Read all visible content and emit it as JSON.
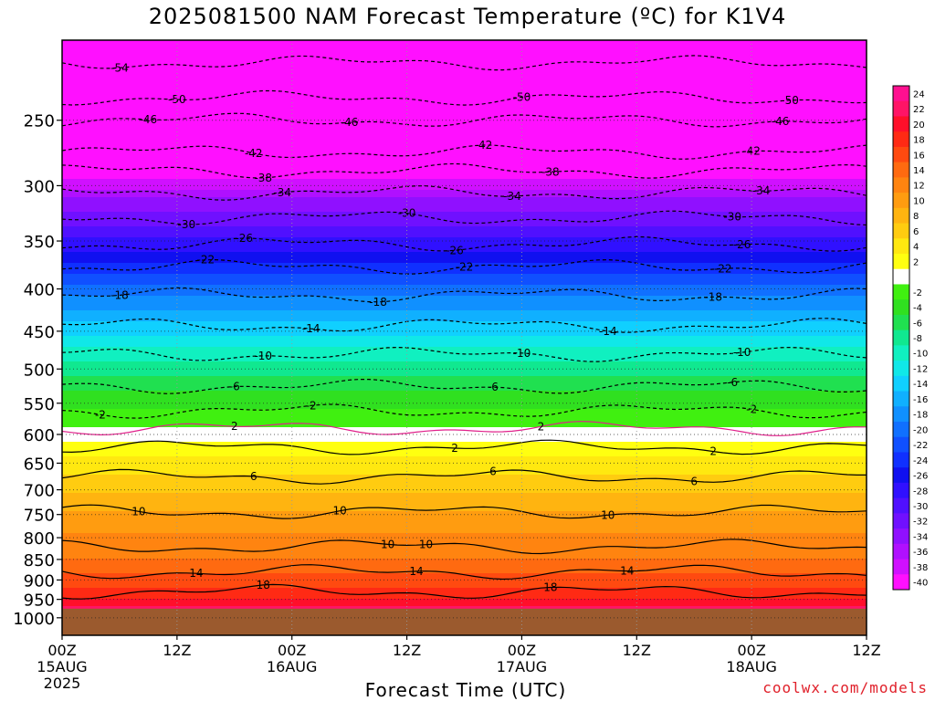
{
  "title": "2025081500 NAM Forecast Temperature (ºC) for K1V4",
  "credit": "coolwx.com/models",
  "chart_data": {
    "type": "heatmap",
    "xlabel": "Forecast Time (UTC)",
    "ylabel": "",
    "x_range_hours": [
      0,
      84
    ],
    "y_range": [
      200,
      1050
    ],
    "y_scale": "log pressure (hPa, inverted)",
    "grid": true,
    "y_ticks": [
      250,
      300,
      350,
      400,
      450,
      500,
      550,
      600,
      650,
      700,
      750,
      800,
      850,
      900,
      950,
      1000
    ],
    "x_ticks": [
      {
        "hour": 0,
        "label": "00Z",
        "date": "15AUG",
        "year": "2025"
      },
      {
        "hour": 12,
        "label": "12Z",
        "date": "",
        "year": ""
      },
      {
        "hour": 24,
        "label": "00Z",
        "date": "16AUG",
        "year": ""
      },
      {
        "hour": 36,
        "label": "12Z",
        "date": "",
        "year": ""
      },
      {
        "hour": 48,
        "label": "00Z",
        "date": "17AUG",
        "year": ""
      },
      {
        "hour": 60,
        "label": "12Z",
        "date": "",
        "year": ""
      },
      {
        "hour": 72,
        "label": "00Z",
        "date": "18AUG",
        "year": ""
      },
      {
        "hour": 84,
        "label": "12Z",
        "date": "",
        "year": ""
      }
    ],
    "colorbar": [
      {
        "value": "24",
        "color": "#ff1090"
      },
      {
        "value": "22",
        "color": "#ff1466"
      },
      {
        "value": "20",
        "color": "#ff0f2a"
      },
      {
        "value": "18",
        "color": "#ff2a14"
      },
      {
        "value": "16",
        "color": "#ff4a10"
      },
      {
        "value": "14",
        "color": "#ff6a10"
      },
      {
        "value": "12",
        "color": "#ff8410"
      },
      {
        "value": "10",
        "color": "#ff9c10"
      },
      {
        "value": "8",
        "color": "#ffb410"
      },
      {
        "value": "6",
        "color": "#ffcc10"
      },
      {
        "value": "4",
        "color": "#ffe810"
      },
      {
        "value": "2",
        "color": "#ffff10"
      },
      {
        "value": "",
        "color": "#ffffff"
      },
      {
        "value": "-2",
        "color": "#40f010"
      },
      {
        "value": "-4",
        "color": "#30e020"
      },
      {
        "value": "-6",
        "color": "#20e050"
      },
      {
        "value": "-8",
        "color": "#10e890"
      },
      {
        "value": "-10",
        "color": "#10f0c0"
      },
      {
        "value": "-12",
        "color": "#10e8e8"
      },
      {
        "value": "-14",
        "color": "#10d0ff"
      },
      {
        "value": "-16",
        "color": "#10b0ff"
      },
      {
        "value": "-18",
        "color": "#1090ff"
      },
      {
        "value": "-20",
        "color": "#1070ff"
      },
      {
        "value": "-22",
        "color": "#1050ff"
      },
      {
        "value": "-24",
        "color": "#1030ff"
      },
      {
        "value": "-26",
        "color": "#1010f0"
      },
      {
        "value": "-28",
        "color": "#3010ff"
      },
      {
        "value": "-30",
        "color": "#5010ff"
      },
      {
        "value": "-32",
        "color": "#7010ff"
      },
      {
        "value": "-34",
        "color": "#9010ff"
      },
      {
        "value": "-36",
        "color": "#b010ff"
      },
      {
        "value": "-38",
        "color": "#d010ff"
      },
      {
        "value": "-40",
        "color": "#ff10ff"
      }
    ],
    "temperature_profile": [
      {
        "pressure": 200,
        "temp": -56
      },
      {
        "pressure": 235,
        "temp": -50
      },
      {
        "pressure": 265,
        "temp": -44
      },
      {
        "pressure": 290,
        "temp": -40
      },
      {
        "pressure": 310,
        "temp": -35
      },
      {
        "pressure": 335,
        "temp": -31
      },
      {
        "pressure": 365,
        "temp": -26
      },
      {
        "pressure": 395,
        "temp": -21
      },
      {
        "pressure": 430,
        "temp": -16
      },
      {
        "pressure": 470,
        "temp": -11
      },
      {
        "pressure": 520,
        "temp": -6
      },
      {
        "pressure": 575,
        "temp": -2
      },
      {
        "pressure": 600,
        "temp": 0
      },
      {
        "pressure": 640,
        "temp": 3
      },
      {
        "pressure": 690,
        "temp": 6
      },
      {
        "pressure": 760,
        "temp": 10
      },
      {
        "pressure": 850,
        "temp": 13
      },
      {
        "pressure": 920,
        "temp": 17
      },
      {
        "pressure": 970,
        "temp": 21
      },
      {
        "pressure": 1050,
        "temp": 25
      }
    ],
    "ground_below_hpa": 975,
    "contours": [
      {
        "label": "-54",
        "pressure": 213,
        "style": "dashed",
        "labels_at": [
          6
        ]
      },
      {
        "label": "-50",
        "pressure": 235,
        "style": "dashed",
        "labels_at": [
          12,
          48,
          76
        ]
      },
      {
        "label": "-46",
        "pressure": 250,
        "style": "dashed",
        "labels_at": [
          9,
          30,
          75
        ]
      },
      {
        "label": "-42",
        "pressure": 273,
        "style": "dashed",
        "labels_at": [
          20,
          44,
          72
        ]
      },
      {
        "label": "-38",
        "pressure": 288,
        "style": "dashed",
        "labels_at": [
          21,
          51
        ]
      },
      {
        "label": "-34",
        "pressure": 306,
        "style": "dashed",
        "labels_at": [
          23,
          47,
          73
        ]
      },
      {
        "label": "-30",
        "pressure": 328,
        "style": "dashed",
        "labels_at": [
          13,
          36,
          70
        ]
      },
      {
        "label": "-26",
        "pressure": 353,
        "style": "dashed",
        "labels_at": [
          19,
          41,
          71
        ]
      },
      {
        "label": "-22",
        "pressure": 376,
        "style": "dashed",
        "labels_at": [
          15,
          42,
          69
        ]
      },
      {
        "label": "-18",
        "pressure": 407,
        "style": "dashed",
        "labels_at": [
          6,
          33,
          68
        ]
      },
      {
        "label": "-14",
        "pressure": 443,
        "style": "dashed",
        "labels_at": [
          26,
          57
        ]
      },
      {
        "label": "-10",
        "pressure": 480,
        "style": "dashed",
        "labels_at": [
          21,
          48,
          71
        ]
      },
      {
        "label": "-6",
        "pressure": 525,
        "style": "dashed",
        "labels_at": [
          18,
          45,
          70
        ]
      },
      {
        "label": "-2",
        "pressure": 562,
        "style": "dashed",
        "labels_at": [
          4,
          26,
          72
        ]
      },
      {
        "label": "2",
        "pressure": 590,
        "style": "magenta",
        "labels_at": [
          18,
          50
        ]
      },
      {
        "label": "2",
        "pressure": 622,
        "style": "solid",
        "labels_at": [
          41,
          68
        ]
      },
      {
        "label": "6",
        "pressure": 675,
        "style": "solid",
        "labels_at": [
          20,
          45,
          66
        ]
      },
      {
        "label": "10",
        "pressure": 745,
        "style": "solid",
        "labels_at": [
          8,
          29,
          57
        ]
      },
      {
        "label": "10",
        "pressure": 820,
        "style": "solid",
        "labels_at": [
          34,
          38
        ]
      },
      {
        "label": "14",
        "pressure": 880,
        "style": "solid",
        "labels_at": [
          14,
          37,
          59
        ]
      },
      {
        "label": "18",
        "pressure": 930,
        "style": "solid",
        "labels_at": [
          21,
          51
        ]
      }
    ]
  }
}
